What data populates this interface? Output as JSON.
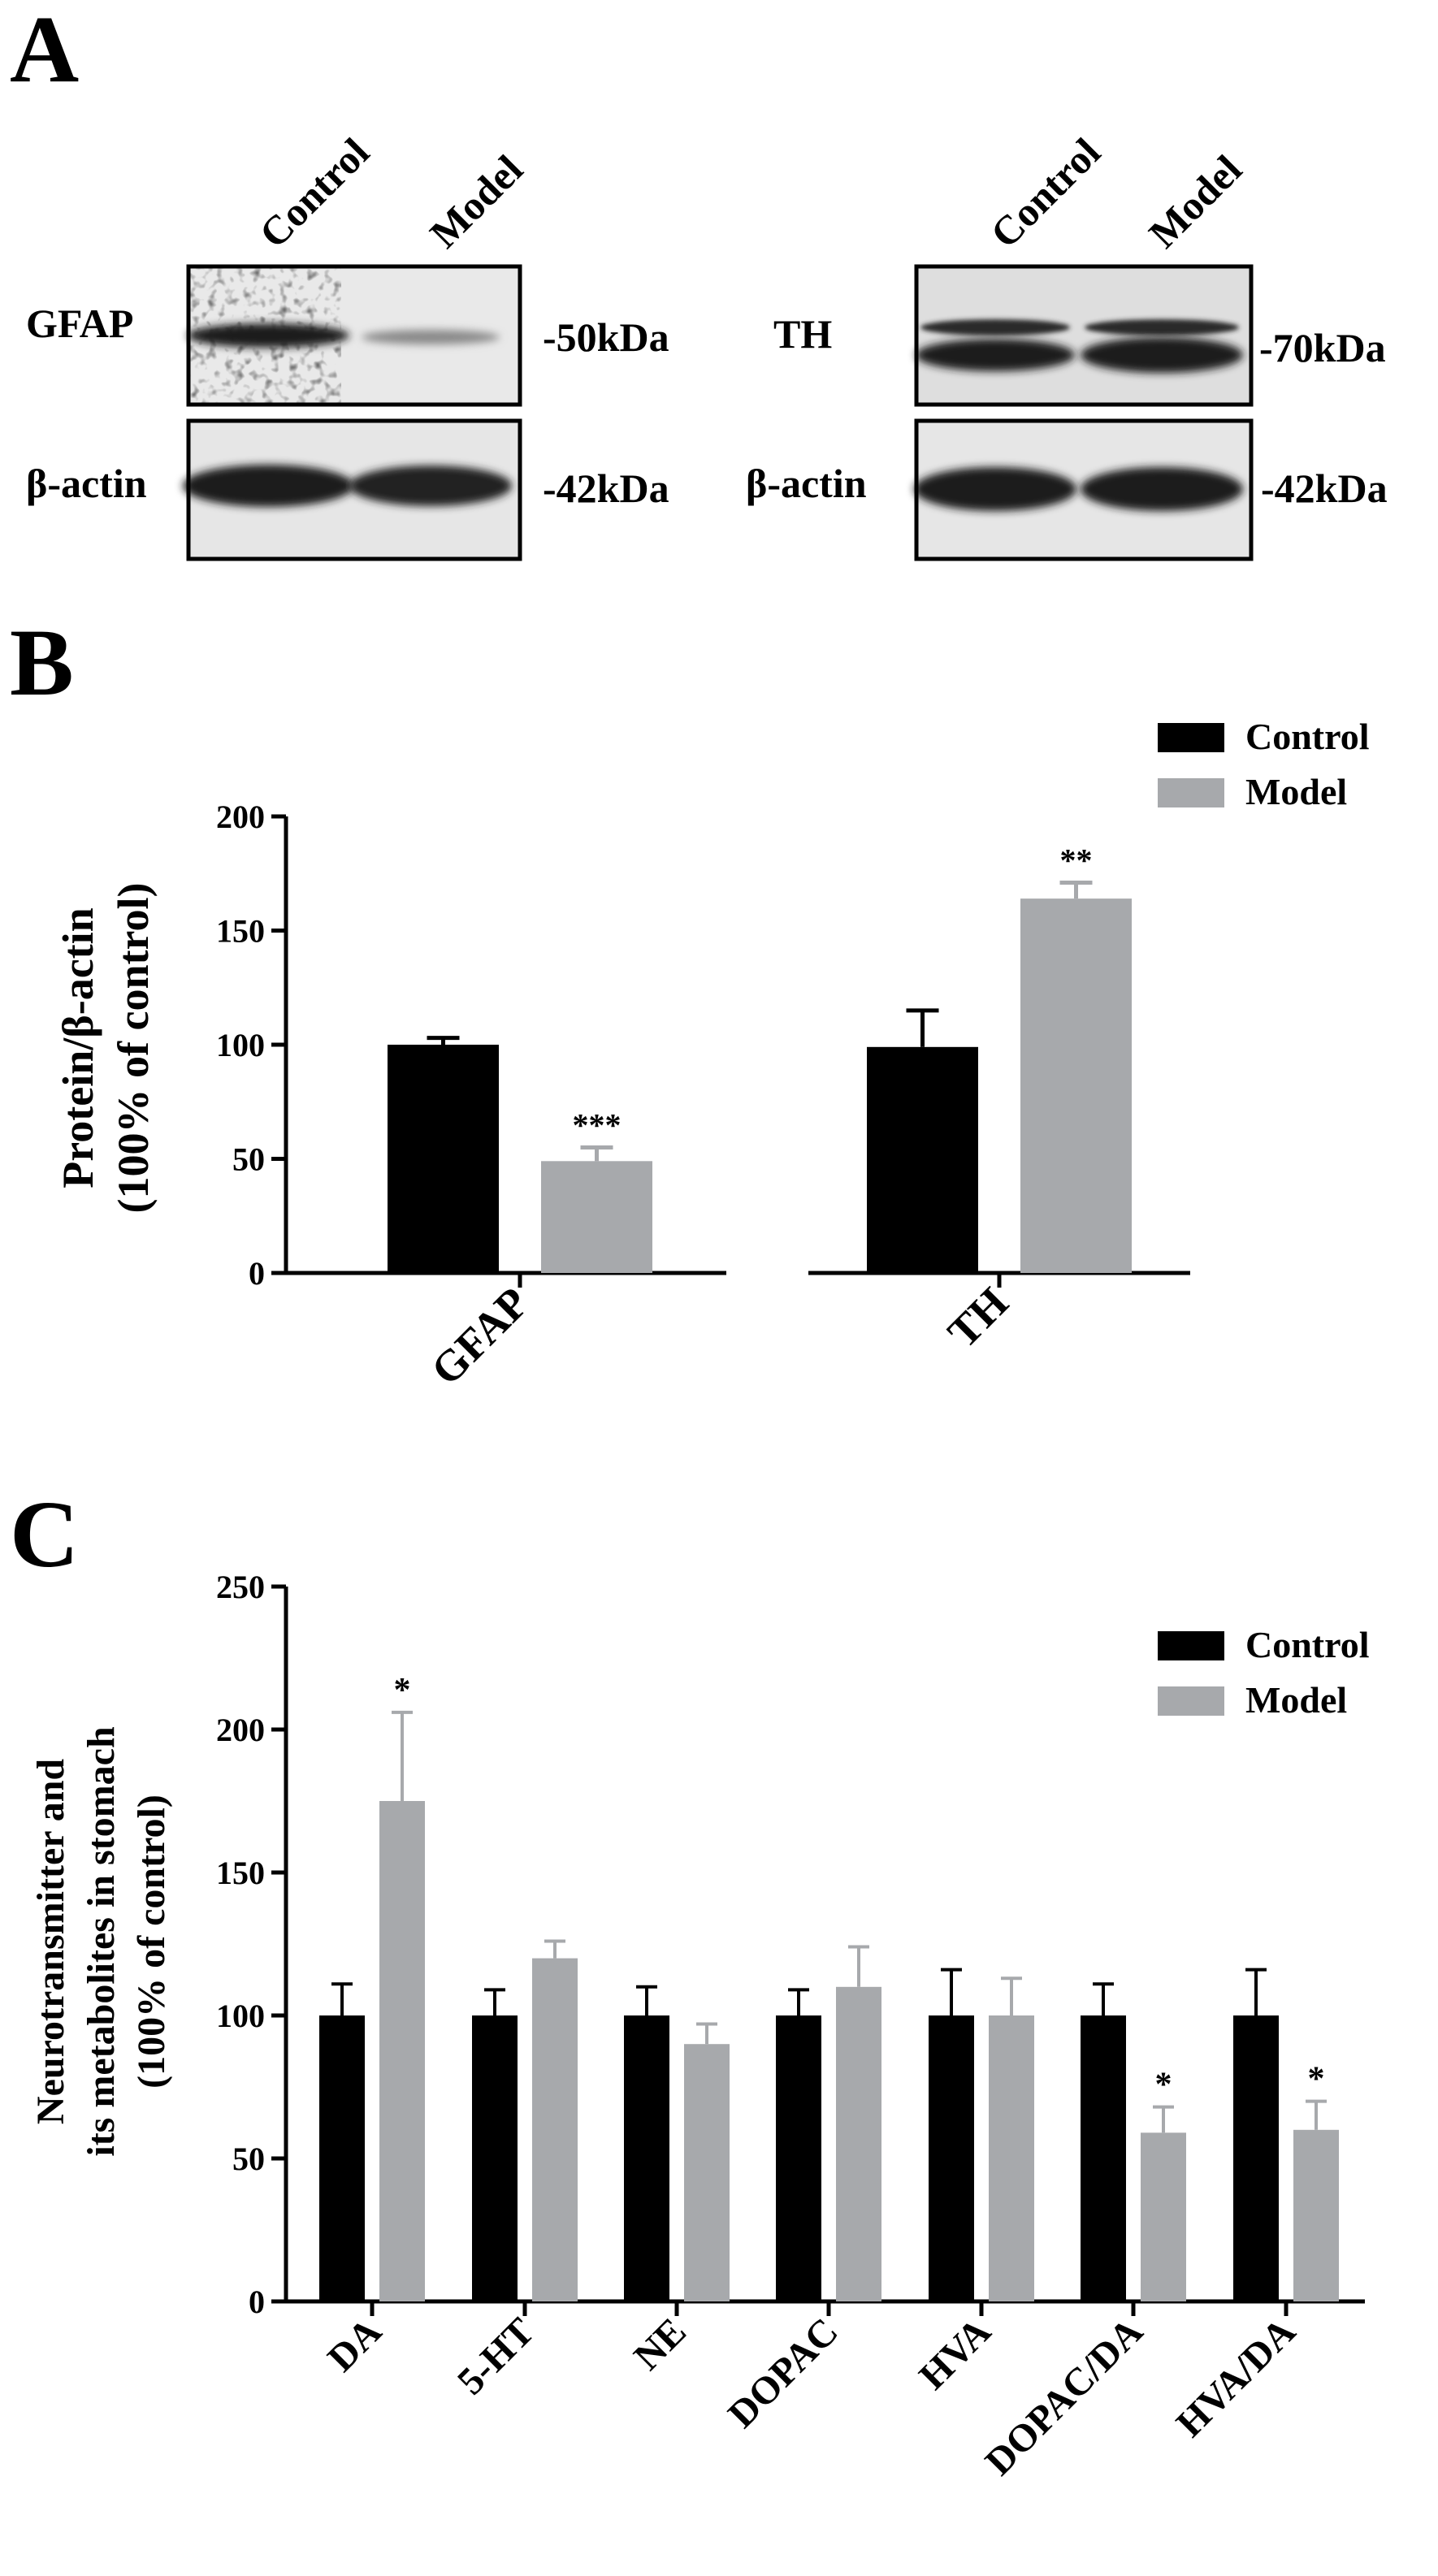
{
  "panel_labels": {
    "a": "A",
    "b": "B",
    "c": "C"
  },
  "colors": {
    "control": "#000000",
    "model": "#a7a9ac",
    "band": "#1c1c1c",
    "blot_bg": "#e9e9e9"
  },
  "panel_a": {
    "lanes": [
      "Control",
      "Model"
    ],
    "left": {
      "top_protein": "GFAP",
      "top_size": "-50kDa",
      "bottom_protein": "β-actin",
      "bottom_size": "-42kDa"
    },
    "right": {
      "top_protein": "TH",
      "top_size": "-70kDa",
      "bottom_protein": "β-actin",
      "bottom_size": "-42kDa"
    }
  },
  "chart_data": [
    {
      "type": "bar",
      "panel": "B",
      "title": "",
      "xlabel": "",
      "ylabel": [
        "Protein/β-actin",
        "(100% of control)"
      ],
      "ylim": [
        0,
        200
      ],
      "yticks": [
        0,
        50,
        100,
        150,
        200
      ],
      "categories": [
        "GFAP",
        "TH"
      ],
      "series": [
        {
          "name": "Control",
          "values": [
            100,
            99
          ],
          "errors": [
            3,
            16
          ],
          "sig": [
            "",
            ""
          ]
        },
        {
          "name": "Model",
          "values": [
            49,
            164
          ],
          "errors": [
            6,
            7
          ],
          "sig": [
            "***",
            "**"
          ]
        }
      ],
      "legend": "top-right",
      "grid": false
    },
    {
      "type": "bar",
      "panel": "C",
      "title": "",
      "xlabel": "",
      "ylabel": [
        "Neurotransmitter and",
        "its metabolites  in stomach",
        "(100% of control)"
      ],
      "ylim": [
        0,
        250
      ],
      "yticks": [
        0,
        50,
        100,
        150,
        200,
        250
      ],
      "categories": [
        "DA",
        "5-HT",
        "NE",
        "DOPAC",
        "HVA",
        "DOPAC/DA",
        "HVA/DA"
      ],
      "series": [
        {
          "name": "Control",
          "values": [
            100,
            100,
            100,
            100,
            100,
            100,
            100
          ],
          "errors": [
            11,
            9,
            10,
            9,
            16,
            11,
            16
          ],
          "sig": [
            "",
            "",
            "",
            "",
            "",
            "",
            ""
          ]
        },
        {
          "name": "Model",
          "values": [
            175,
            120,
            90,
            110,
            100,
            59,
            60
          ],
          "errors": [
            31,
            6,
            7,
            14,
            13,
            9,
            10
          ],
          "sig": [
            "*",
            "",
            "",
            "",
            "",
            "*",
            "*"
          ]
        }
      ],
      "legend": "top-right",
      "grid": false
    }
  ]
}
